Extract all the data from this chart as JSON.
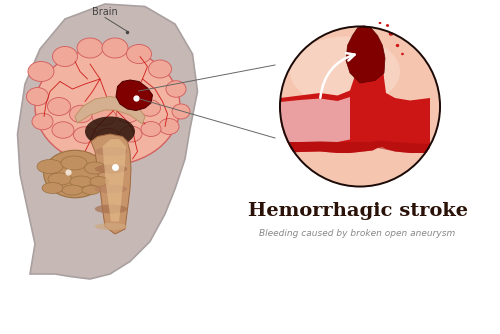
{
  "title": "Hemorrhagic stroke",
  "subtitle": "Bleeding caused by broken open aneurysm",
  "brain_label": "Brain",
  "bg_color": "#ffffff",
  "head_color": "#c5b8b5",
  "head_edge_color": "#aaa0a0",
  "brain_color": "#f2b4a0",
  "brain_gyri_color": "#f0a898",
  "brain_edge_color": "#d46060",
  "vessel_red": "#cc1515",
  "vessel_dark": "#aa0a0a",
  "vessel_light_stripe": "#f5d0d0",
  "vessel_mid": "#e06060",
  "hemorrhage_color": "#800000",
  "hem_edge": "#500000",
  "circle_bg": "#f5c5b0",
  "circle_bg2": "#f0b8a0",
  "circle_edge": "#1a0a08",
  "brainstem_outer": "#c8956a",
  "brainstem_inner": "#a06840",
  "brainstem_light": "#e8c090",
  "cerebellum_color": "#c09060",
  "cerebellum_dark": "#9a7040",
  "thalamus_color": "#2a1208",
  "title_color": "#2a1208",
  "subtitle_color": "#888888",
  "label_color": "#444444",
  "line_color": "#666666"
}
